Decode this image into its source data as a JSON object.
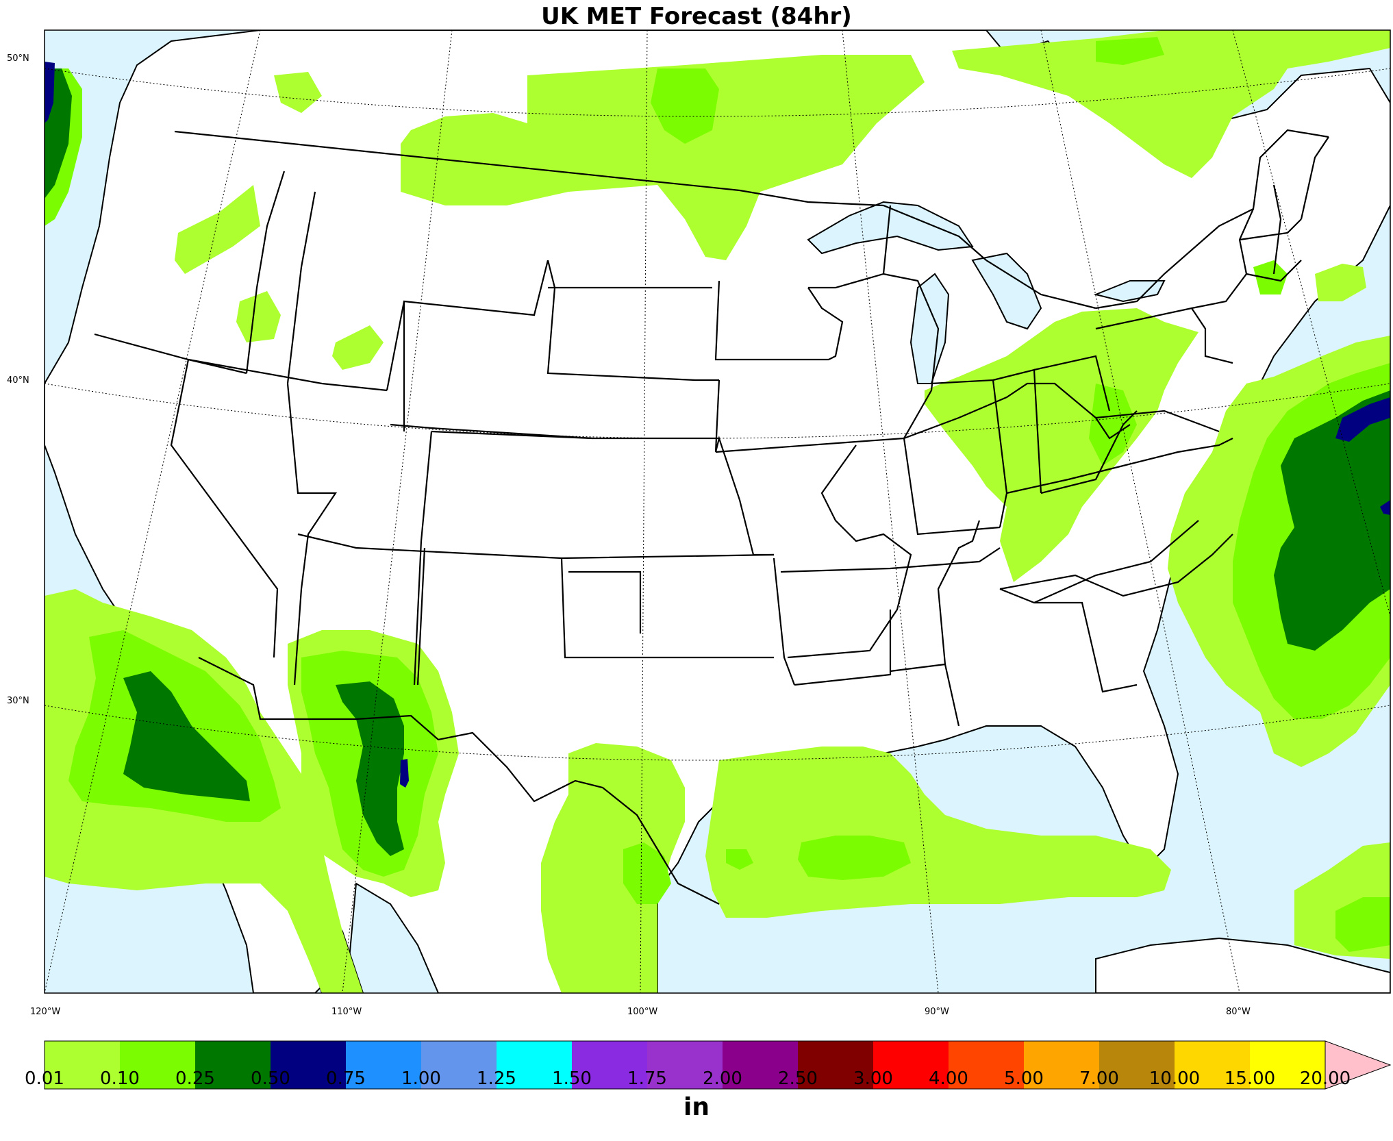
{
  "title": "UK MET Forecast (84hr)",
  "units": "in",
  "lat_labels": [
    "50°N",
    "40°N",
    "30°N"
  ],
  "lon_labels": [
    "120°W",
    "110°W",
    "100°W",
    "90°W",
    "80°W"
  ],
  "colorbar": {
    "ticks": [
      "0.01",
      "0.10",
      "0.25",
      "0.50",
      "0.75",
      "1.00",
      "1.25",
      "1.50",
      "1.75",
      "2.00",
      "2.50",
      "3.00",
      "4.00",
      "5.00",
      "7.00",
      "10.00",
      "15.00",
      "20.00"
    ],
    "colors": [
      "#adff2f",
      "#7cfc00",
      "#007800",
      "#000080",
      "#1e90ff",
      "#6495ed",
      "#00ffff",
      "#8a2be2",
      "#9932cc",
      "#8b008b",
      "#800000",
      "#ff0000",
      "#ff4500",
      "#ffa500",
      "#b8860b",
      "#ffd700",
      "#ffff00"
    ],
    "extend_color": "#ffc0cb"
  },
  "colors": {
    "water": "#dcf4fd",
    "land": "#ffffff"
  }
}
